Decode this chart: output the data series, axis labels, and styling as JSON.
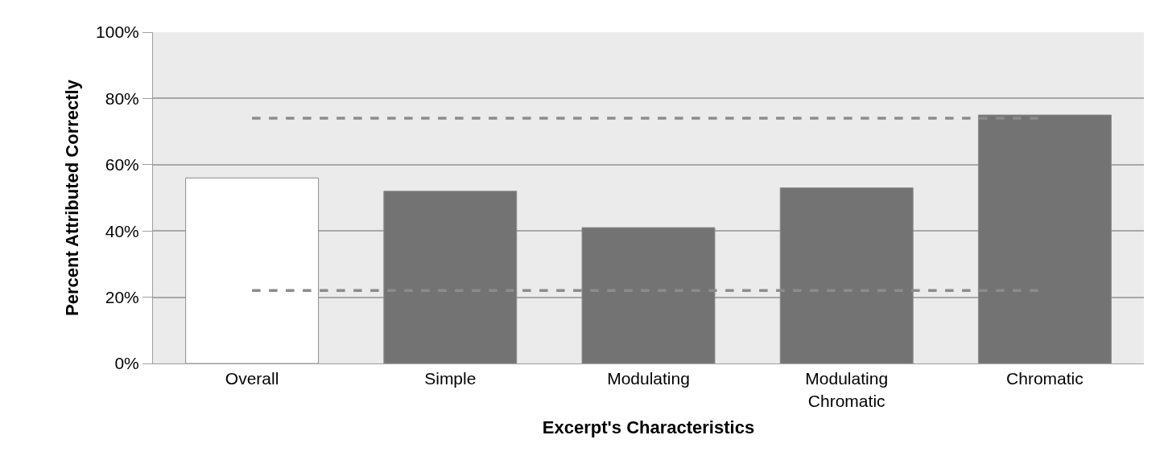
{
  "chart_data": {
    "type": "bar",
    "xlabel": "Excerpt's Characteristics",
    "ylabel": "Percent Attributed Correctly",
    "categories": [
      "Overall",
      "Simple",
      "Modulating",
      "Modulating Chromatic",
      "Chromatic"
    ],
    "values": [
      56,
      52,
      41,
      53,
      75
    ],
    "colors": [
      "#ffffff",
      "#737373",
      "#737373",
      "#737373",
      "#737373"
    ],
    "ylim": [
      0,
      100
    ],
    "yticks": [
      {
        "value": 0,
        "label": "0%"
      },
      {
        "value": 20,
        "label": "20%"
      },
      {
        "value": 40,
        "label": "40%"
      },
      {
        "value": 60,
        "label": "60%"
      },
      {
        "value": 80,
        "label": "80%"
      },
      {
        "value": 100,
        "label": "100%"
      }
    ],
    "ref_lines": [
      {
        "axis": "y",
        "value": 74,
        "color": "#8c8c8c",
        "line_style": "dashed"
      },
      {
        "axis": "y",
        "value": 22,
        "color": "#8c8c8c",
        "line_style": "dashed"
      }
    ],
    "grid": "y",
    "legend": false
  }
}
